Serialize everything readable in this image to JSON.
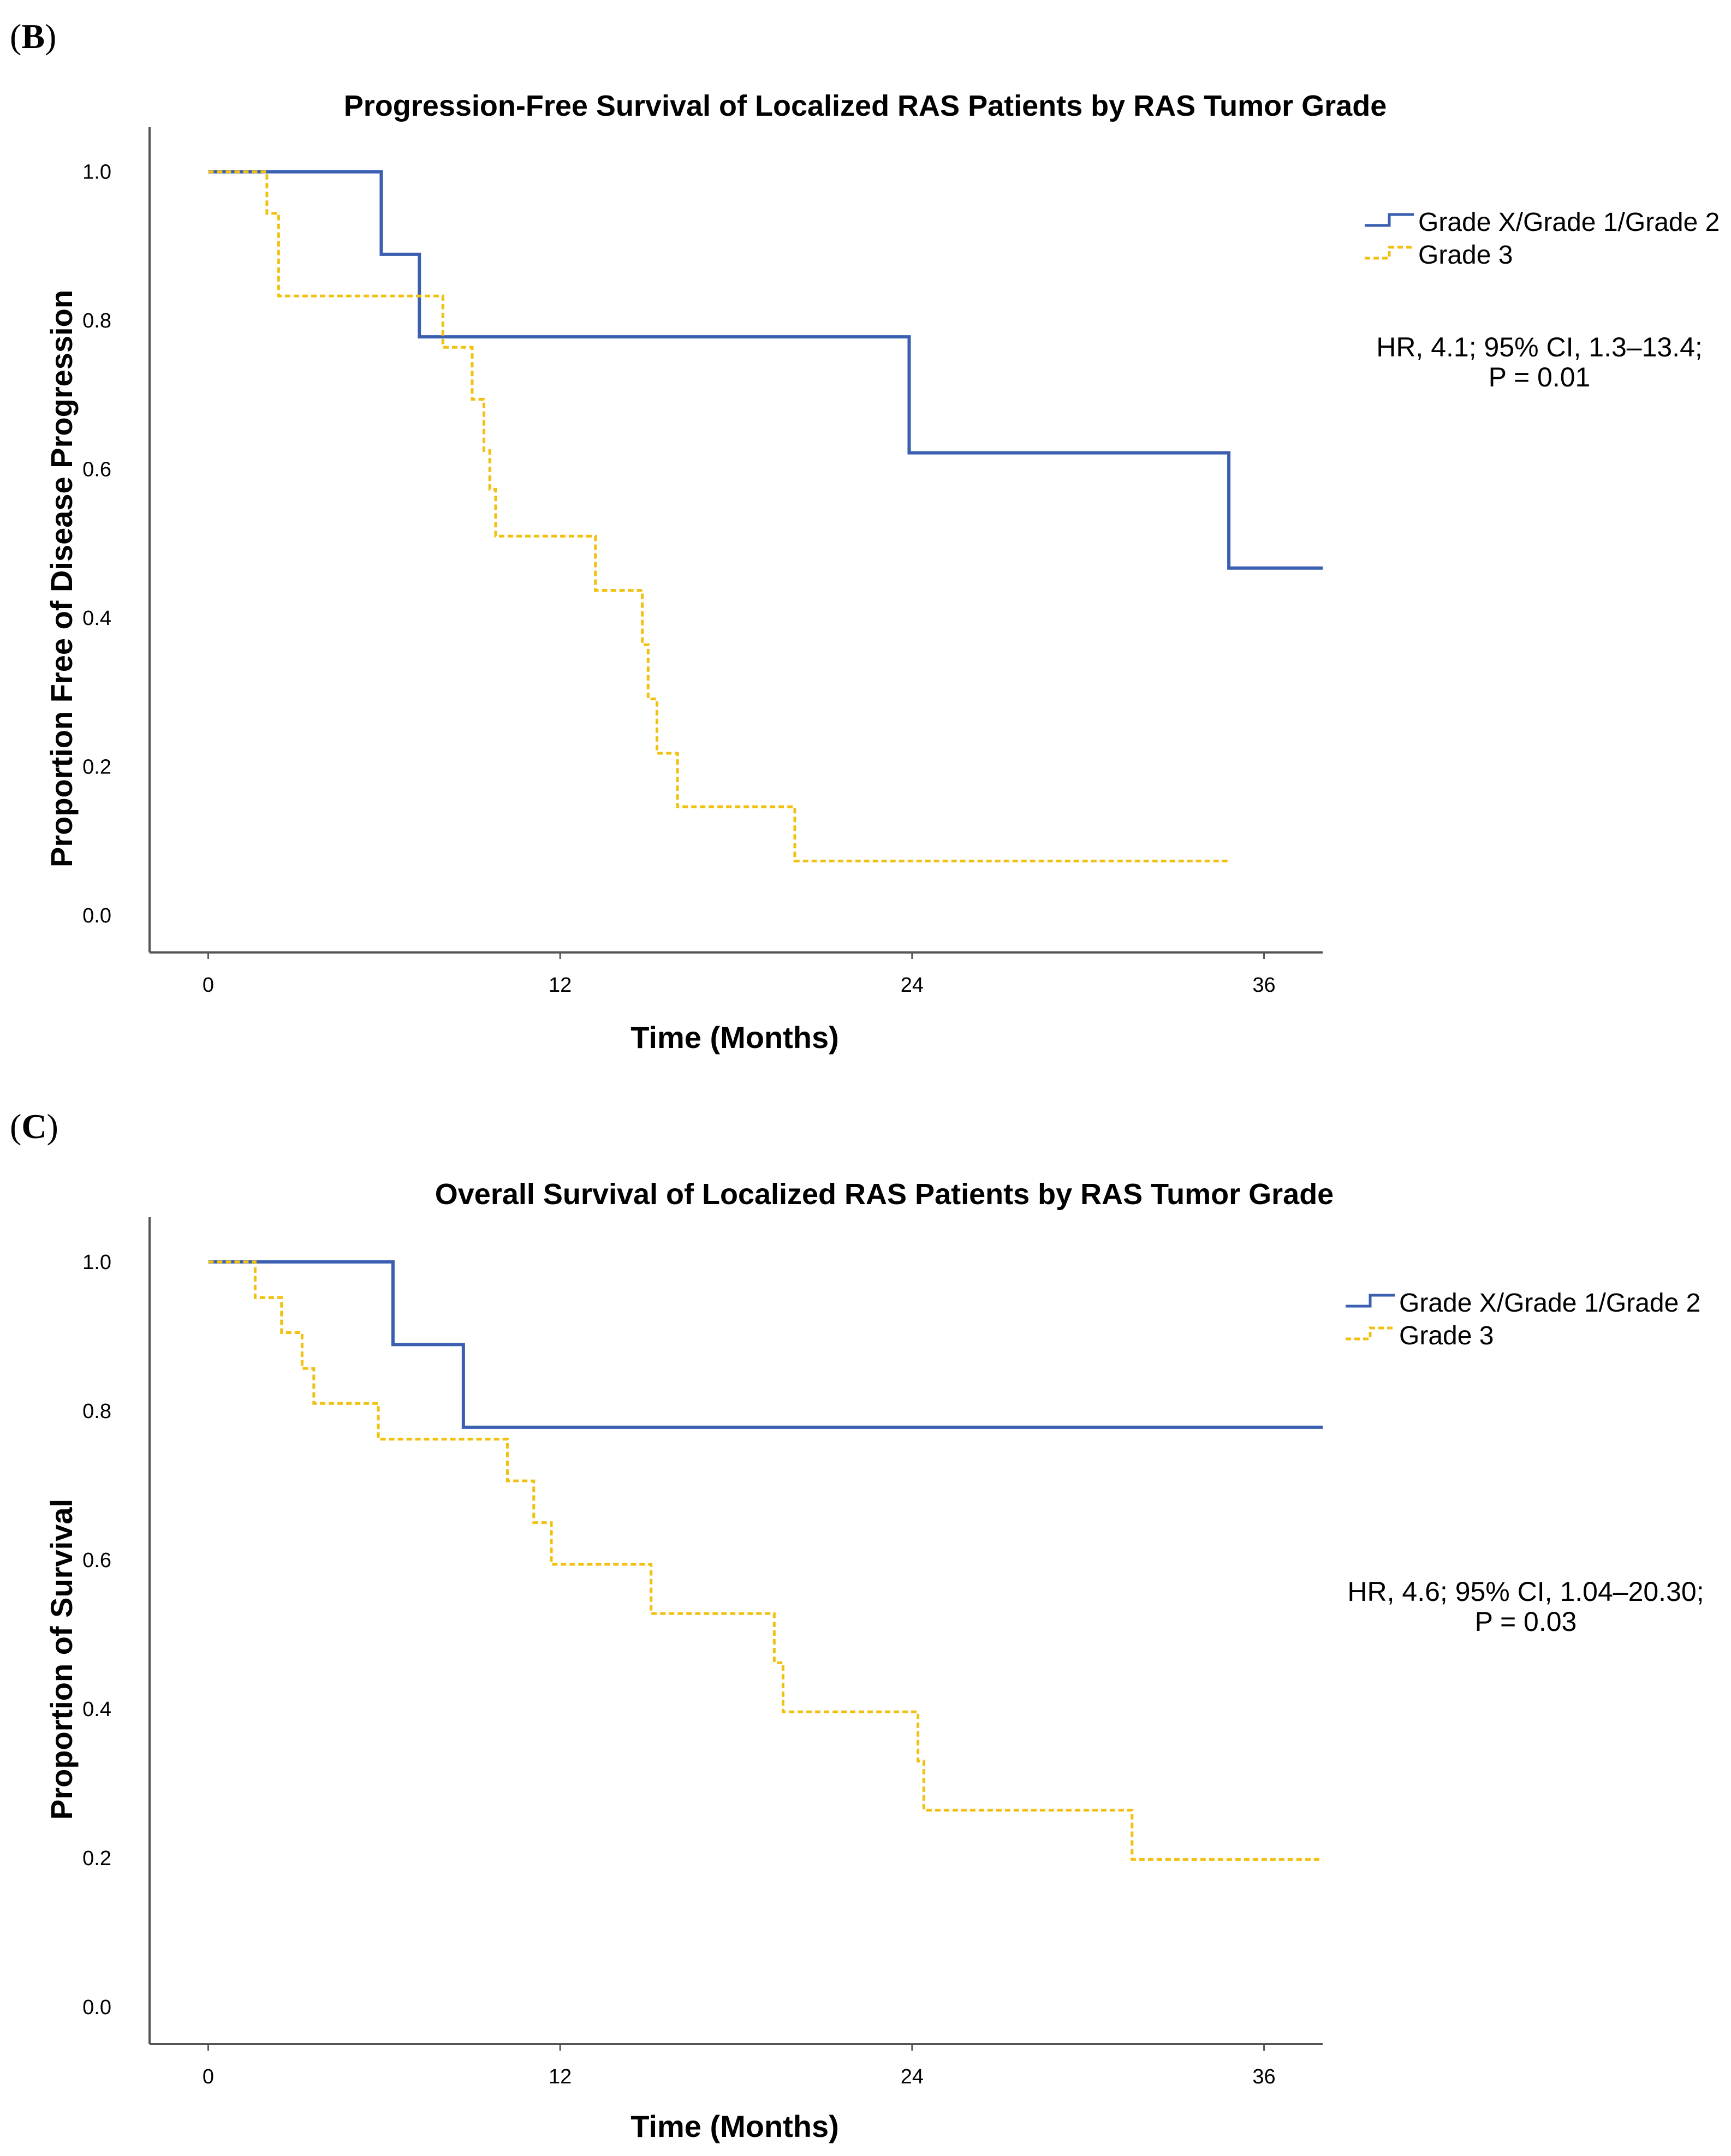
{
  "panels": [
    {
      "label": "B",
      "title": "Progression-Free Survival of Localized RAS Patients by RAS Tumor Grade",
      "ylabel": "Proportion Free of Disease Progression",
      "xlabel": "Time (Months)",
      "annotation_line1": "HR, 4.1; 95% CI, 1.3–13.4;",
      "annotation_line2": "P = 0.01"
    },
    {
      "label": "C",
      "title": "Overall Survival of Localized RAS Patients by RAS Tumor Grade",
      "ylabel": "Proportion of Survival",
      "xlabel": "Time (Months)",
      "annotation_line1": "HR, 4.6; 95% CI, 1.04–20.30;",
      "annotation_line2": "P = 0.03"
    }
  ],
  "colors": {
    "grade_low": "#3a5fb0",
    "grade_3": "#f2c010",
    "axis": "#555555"
  },
  "chart_data": [
    {
      "type": "line",
      "step": true,
      "title": "Progression-Free Survival of Localized RAS Patients by RAS Tumor Grade",
      "xlabel": "Time (Months)",
      "ylabel": "Proportion Free of Disease Progression",
      "xlim": [
        -2,
        38
      ],
      "ylim": [
        -0.05,
        1.06
      ],
      "xticks": [
        "0",
        "12",
        "24",
        "36"
      ],
      "xtick_values": [
        0,
        12,
        24,
        36
      ],
      "yticks": [
        "0.0",
        "0.2",
        "0.4",
        "0.6",
        "0.8",
        "1.0"
      ],
      "ytick_values": [
        0,
        0.2,
        0.4,
        0.6,
        0.8,
        1.0
      ],
      "legend_position": "top-right",
      "series": [
        {
          "name": "Grade X/Grade 1/Grade 2",
          "style": "solid",
          "x": [
            0,
            5.9,
            7.2,
            23.9,
            34.8,
            38
          ],
          "y": [
            1.0,
            0.889,
            0.778,
            0.622,
            0.467,
            0.467
          ]
        },
        {
          "name": "Grade 3",
          "style": "dashed",
          "x": [
            0,
            2.0,
            2.4,
            8.0,
            9.0,
            9.4,
            9.6,
            9.8,
            13.2,
            14.8,
            15.0,
            15.3,
            16.0,
            20.0,
            34.8
          ],
          "y": [
            1.0,
            0.944,
            0.833,
            0.764,
            0.694,
            0.625,
            0.573,
            0.51,
            0.437,
            0.364,
            0.291,
            0.218,
            0.146,
            0.073,
            0.073
          ]
        }
      ]
    },
    {
      "type": "line",
      "step": true,
      "title": "Overall Survival of Localized RAS Patients by RAS Tumor Grade",
      "xlabel": "Time (Months)",
      "ylabel": "Proportion of Survival",
      "xlim": [
        -2,
        38
      ],
      "ylim": [
        -0.05,
        1.06
      ],
      "xticks": [
        "0",
        "12",
        "24",
        "36"
      ],
      "xtick_values": [
        0,
        12,
        24,
        36
      ],
      "yticks": [
        "0.0",
        "0.2",
        "0.4",
        "0.6",
        "0.8",
        "1.0"
      ],
      "ytick_values": [
        0,
        0.2,
        0.4,
        0.6,
        0.8,
        1.0
      ],
      "legend_position": "top-right",
      "series": [
        {
          "name": "Grade X/Grade 1/Grade 2",
          "style": "solid",
          "x": [
            0,
            6.3,
            8.7,
            38
          ],
          "y": [
            1.0,
            0.889,
            0.778,
            0.778
          ]
        },
        {
          "name": "Grade 3",
          "style": "dashed",
          "x": [
            0,
            1.6,
            2.5,
            3.2,
            3.6,
            5.8,
            10.2,
            11.1,
            11.7,
            15.1,
            19.3,
            19.6,
            24.2,
            24.4,
            31.5,
            38
          ],
          "y": [
            1.0,
            0.952,
            0.905,
            0.857,
            0.81,
            0.762,
            0.706,
            0.65,
            0.594,
            0.528,
            0.462,
            0.396,
            0.33,
            0.264,
            0.198,
            0.198
          ]
        }
      ]
    }
  ]
}
